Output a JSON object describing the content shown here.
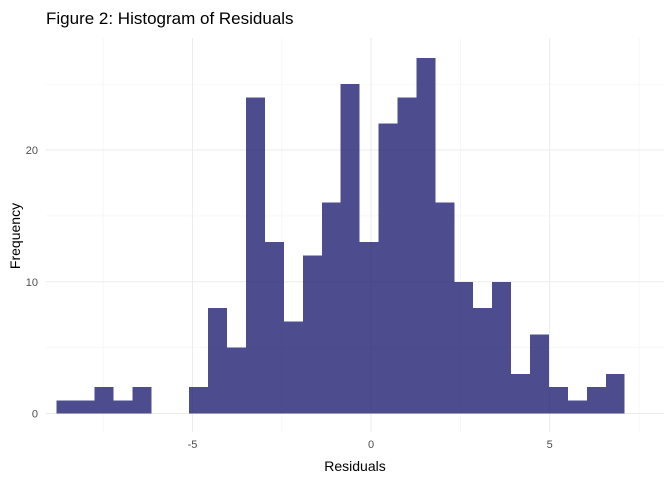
{
  "chart_data": {
    "type": "bar",
    "title": "Figure 2: Histogram of Residuals",
    "xlabel": "Residuals",
    "ylabel": "Frequency",
    "xlim": [
      -9.1,
      8.2
    ],
    "ylim": [
      -1.4,
      28.5
    ],
    "x_ticks": [
      -5,
      0,
      5
    ],
    "x_tick_labels": [
      "-5",
      "0",
      "5"
    ],
    "y_ticks": [
      0,
      10,
      20
    ],
    "y_tick_labels": [
      "0",
      "10",
      "20"
    ],
    "grid": true,
    "bar_color": "#191970",
    "bar_opacity": 0.78,
    "bins": [
      {
        "x0": -8.8,
        "x1": -8.27,
        "count": 1
      },
      {
        "x0": -8.27,
        "x1": -7.74,
        "count": 1
      },
      {
        "x0": -7.74,
        "x1": -7.21,
        "count": 2
      },
      {
        "x0": -7.21,
        "x1": -6.68,
        "count": 1
      },
      {
        "x0": -6.68,
        "x1": -6.15,
        "count": 2
      },
      {
        "x0": -6.15,
        "x1": -5.62,
        "count": 0
      },
      {
        "x0": -5.62,
        "x1": -5.09,
        "count": 0
      },
      {
        "x0": -5.09,
        "x1": -4.56,
        "count": 2
      },
      {
        "x0": -4.56,
        "x1": -4.03,
        "count": 8
      },
      {
        "x0": -4.03,
        "x1": -3.5,
        "count": 5
      },
      {
        "x0": -3.5,
        "x1": -2.97,
        "count": 24
      },
      {
        "x0": -2.97,
        "x1": -2.44,
        "count": 13
      },
      {
        "x0": -2.44,
        "x1": -1.91,
        "count": 7
      },
      {
        "x0": -1.91,
        "x1": -1.38,
        "count": 12
      },
      {
        "x0": -1.38,
        "x1": -0.85,
        "count": 16
      },
      {
        "x0": -0.85,
        "x1": -0.32,
        "count": 25
      },
      {
        "x0": -0.32,
        "x1": 0.21,
        "count": 13
      },
      {
        "x0": 0.21,
        "x1": 0.74,
        "count": 22
      },
      {
        "x0": 0.74,
        "x1": 1.27,
        "count": 24
      },
      {
        "x0": 1.27,
        "x1": 1.8,
        "count": 27
      },
      {
        "x0": 1.8,
        "x1": 2.33,
        "count": 16
      },
      {
        "x0": 2.33,
        "x1": 2.86,
        "count": 10
      },
      {
        "x0": 2.86,
        "x1": 3.39,
        "count": 8
      },
      {
        "x0": 3.39,
        "x1": 3.92,
        "count": 10
      },
      {
        "x0": 3.92,
        "x1": 4.45,
        "count": 3
      },
      {
        "x0": 4.45,
        "x1": 4.98,
        "count": 6
      },
      {
        "x0": 4.98,
        "x1": 5.51,
        "count": 2
      },
      {
        "x0": 5.51,
        "x1": 6.04,
        "count": 1
      },
      {
        "x0": 6.04,
        "x1": 6.57,
        "count": 2
      },
      {
        "x0": 6.57,
        "x1": 7.1,
        "count": 3
      }
    ]
  }
}
